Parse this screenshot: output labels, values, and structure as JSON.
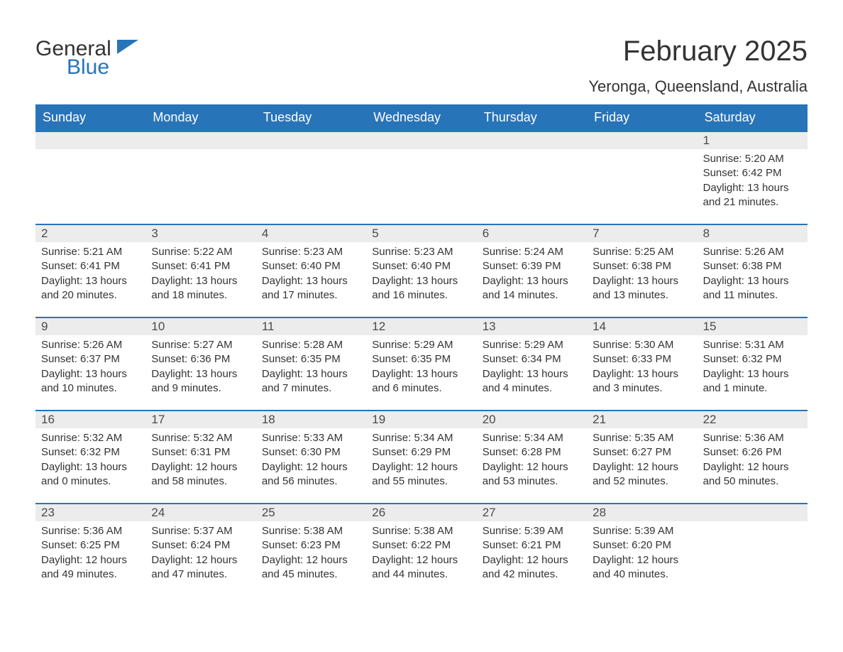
{
  "brand": {
    "word1": "General",
    "word2": "Blue",
    "color_text": "#333333",
    "color_accent": "#2874b9"
  },
  "header": {
    "month_title": "February 2025",
    "location": "Yeronga, Queensland, Australia"
  },
  "calendar": {
    "type": "table",
    "columns": [
      "Sunday",
      "Monday",
      "Tuesday",
      "Wednesday",
      "Thursday",
      "Friday",
      "Saturday"
    ],
    "header_bg": "#2874b9",
    "header_text_color": "#ffffff",
    "row_accent_color": "#2874b9",
    "day_number_bg": "#ececec",
    "body_text_color": "#333333",
    "background_color": "#ffffff",
    "header_fontsize": 18,
    "daynum_fontsize": 17,
    "info_fontsize": 15,
    "weeks": [
      [
        null,
        null,
        null,
        null,
        null,
        null,
        {
          "n": "1",
          "sunrise": "Sunrise: 5:20 AM",
          "sunset": "Sunset: 6:42 PM",
          "daylight": "Daylight: 13 hours and 21 minutes."
        }
      ],
      [
        {
          "n": "2",
          "sunrise": "Sunrise: 5:21 AM",
          "sunset": "Sunset: 6:41 PM",
          "daylight": "Daylight: 13 hours and 20 minutes."
        },
        {
          "n": "3",
          "sunrise": "Sunrise: 5:22 AM",
          "sunset": "Sunset: 6:41 PM",
          "daylight": "Daylight: 13 hours and 18 minutes."
        },
        {
          "n": "4",
          "sunrise": "Sunrise: 5:23 AM",
          "sunset": "Sunset: 6:40 PM",
          "daylight": "Daylight: 13 hours and 17 minutes."
        },
        {
          "n": "5",
          "sunrise": "Sunrise: 5:23 AM",
          "sunset": "Sunset: 6:40 PM",
          "daylight": "Daylight: 13 hours and 16 minutes."
        },
        {
          "n": "6",
          "sunrise": "Sunrise: 5:24 AM",
          "sunset": "Sunset: 6:39 PM",
          "daylight": "Daylight: 13 hours and 14 minutes."
        },
        {
          "n": "7",
          "sunrise": "Sunrise: 5:25 AM",
          "sunset": "Sunset: 6:38 PM",
          "daylight": "Daylight: 13 hours and 13 minutes."
        },
        {
          "n": "8",
          "sunrise": "Sunrise: 5:26 AM",
          "sunset": "Sunset: 6:38 PM",
          "daylight": "Daylight: 13 hours and 11 minutes."
        }
      ],
      [
        {
          "n": "9",
          "sunrise": "Sunrise: 5:26 AM",
          "sunset": "Sunset: 6:37 PM",
          "daylight": "Daylight: 13 hours and 10 minutes."
        },
        {
          "n": "10",
          "sunrise": "Sunrise: 5:27 AM",
          "sunset": "Sunset: 6:36 PM",
          "daylight": "Daylight: 13 hours and 9 minutes."
        },
        {
          "n": "11",
          "sunrise": "Sunrise: 5:28 AM",
          "sunset": "Sunset: 6:35 PM",
          "daylight": "Daylight: 13 hours and 7 minutes."
        },
        {
          "n": "12",
          "sunrise": "Sunrise: 5:29 AM",
          "sunset": "Sunset: 6:35 PM",
          "daylight": "Daylight: 13 hours and 6 minutes."
        },
        {
          "n": "13",
          "sunrise": "Sunrise: 5:29 AM",
          "sunset": "Sunset: 6:34 PM",
          "daylight": "Daylight: 13 hours and 4 minutes."
        },
        {
          "n": "14",
          "sunrise": "Sunrise: 5:30 AM",
          "sunset": "Sunset: 6:33 PM",
          "daylight": "Daylight: 13 hours and 3 minutes."
        },
        {
          "n": "15",
          "sunrise": "Sunrise: 5:31 AM",
          "sunset": "Sunset: 6:32 PM",
          "daylight": "Daylight: 13 hours and 1 minute."
        }
      ],
      [
        {
          "n": "16",
          "sunrise": "Sunrise: 5:32 AM",
          "sunset": "Sunset: 6:32 PM",
          "daylight": "Daylight: 13 hours and 0 minutes."
        },
        {
          "n": "17",
          "sunrise": "Sunrise: 5:32 AM",
          "sunset": "Sunset: 6:31 PM",
          "daylight": "Daylight: 12 hours and 58 minutes."
        },
        {
          "n": "18",
          "sunrise": "Sunrise: 5:33 AM",
          "sunset": "Sunset: 6:30 PM",
          "daylight": "Daylight: 12 hours and 56 minutes."
        },
        {
          "n": "19",
          "sunrise": "Sunrise: 5:34 AM",
          "sunset": "Sunset: 6:29 PM",
          "daylight": "Daylight: 12 hours and 55 minutes."
        },
        {
          "n": "20",
          "sunrise": "Sunrise: 5:34 AM",
          "sunset": "Sunset: 6:28 PM",
          "daylight": "Daylight: 12 hours and 53 minutes."
        },
        {
          "n": "21",
          "sunrise": "Sunrise: 5:35 AM",
          "sunset": "Sunset: 6:27 PM",
          "daylight": "Daylight: 12 hours and 52 minutes."
        },
        {
          "n": "22",
          "sunrise": "Sunrise: 5:36 AM",
          "sunset": "Sunset: 6:26 PM",
          "daylight": "Daylight: 12 hours and 50 minutes."
        }
      ],
      [
        {
          "n": "23",
          "sunrise": "Sunrise: 5:36 AM",
          "sunset": "Sunset: 6:25 PM",
          "daylight": "Daylight: 12 hours and 49 minutes."
        },
        {
          "n": "24",
          "sunrise": "Sunrise: 5:37 AM",
          "sunset": "Sunset: 6:24 PM",
          "daylight": "Daylight: 12 hours and 47 minutes."
        },
        {
          "n": "25",
          "sunrise": "Sunrise: 5:38 AM",
          "sunset": "Sunset: 6:23 PM",
          "daylight": "Daylight: 12 hours and 45 minutes."
        },
        {
          "n": "26",
          "sunrise": "Sunrise: 5:38 AM",
          "sunset": "Sunset: 6:22 PM",
          "daylight": "Daylight: 12 hours and 44 minutes."
        },
        {
          "n": "27",
          "sunrise": "Sunrise: 5:39 AM",
          "sunset": "Sunset: 6:21 PM",
          "daylight": "Daylight: 12 hours and 42 minutes."
        },
        {
          "n": "28",
          "sunrise": "Sunrise: 5:39 AM",
          "sunset": "Sunset: 6:20 PM",
          "daylight": "Daylight: 12 hours and 40 minutes."
        },
        null
      ]
    ]
  }
}
